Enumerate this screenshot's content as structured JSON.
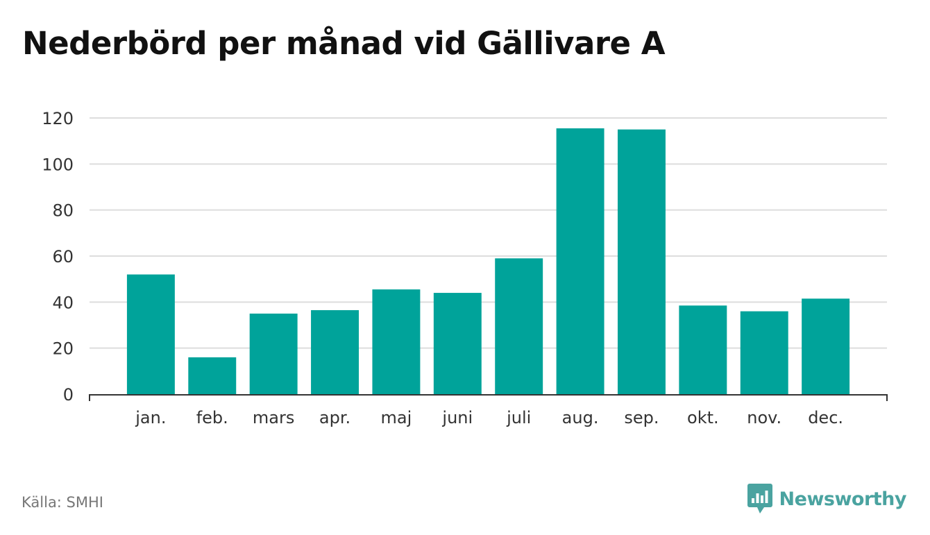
{
  "title": "Nederbörd per månad vid Gällivare A",
  "source": "Källa: SMHI",
  "brand": {
    "name": "Newsworthy",
    "logo_icon": "bar-chart-speech-bubble-icon",
    "color": "#4aa3a0"
  },
  "colors": {
    "bar": "#00a39a",
    "grid": "#dddddd",
    "axis": "#333333"
  },
  "chart_data": {
    "type": "bar",
    "categories": [
      "jan.",
      "feb.",
      "mars",
      "apr.",
      "maj",
      "juni",
      "juli",
      "aug.",
      "sep.",
      "okt.",
      "nov.",
      "dec."
    ],
    "values": [
      52,
      16,
      35,
      36.5,
      45.5,
      44,
      59,
      115.5,
      115,
      38.5,
      36,
      41.5
    ],
    "title": "Nederbörd per månad vid Gällivare A",
    "xlabel": "",
    "ylabel": "",
    "ylim": [
      0,
      120
    ],
    "yticks": [
      0,
      20,
      40,
      60,
      80,
      100,
      120
    ],
    "grid": true,
    "legend": "none"
  }
}
